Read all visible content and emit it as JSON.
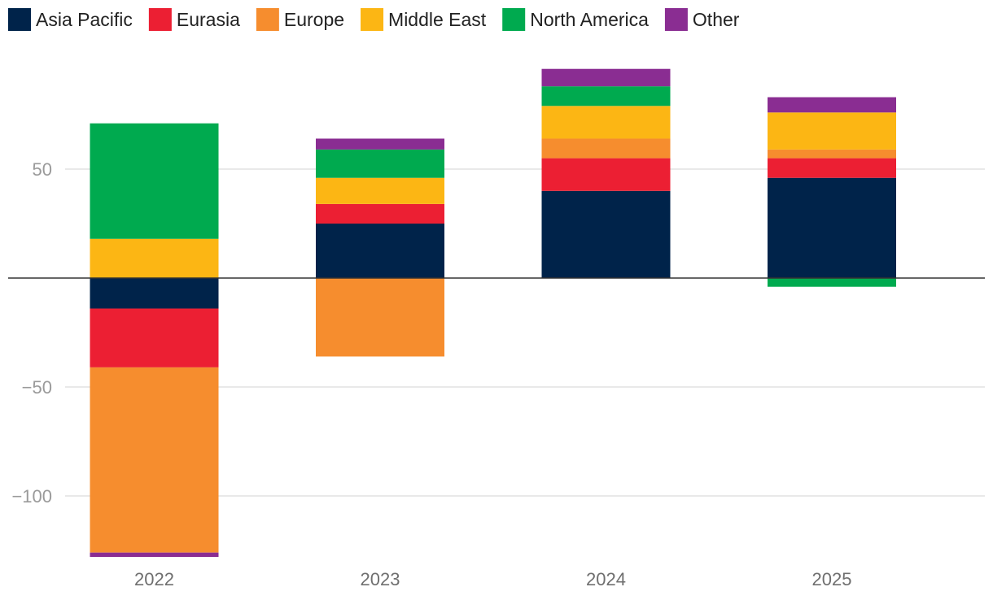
{
  "chart_data": {
    "type": "bar",
    "stacked": true,
    "title": "",
    "xlabel": "",
    "ylabel": "",
    "ylim": [
      -128,
      96
    ],
    "y_ticks": [
      50,
      -50,
      -100
    ],
    "y_tick_labels": [
      "50",
      "−50",
      "−100"
    ],
    "legend_position": "top-left",
    "categories": [
      "2022",
      "2023",
      "2024",
      "2025"
    ],
    "series": [
      {
        "name": "Asia Pacific",
        "color": "#00234a",
        "values": [
          -14,
          25,
          40,
          46
        ]
      },
      {
        "name": "Eurasia",
        "color": "#ec1f33",
        "values": [
          -27,
          9,
          15,
          9
        ]
      },
      {
        "name": "Europe",
        "color": "#f68d2e",
        "values": [
          -85,
          -36,
          9,
          4
        ]
      },
      {
        "name": "Middle East",
        "color": "#fcb614",
        "values": [
          18,
          12,
          15,
          17
        ]
      },
      {
        "name": "North America",
        "color": "#00aa4f",
        "values": [
          53,
          13,
          9,
          -4
        ]
      },
      {
        "name": "Other",
        "color": "#8a2d92",
        "values": [
          -2,
          5,
          8,
          7
        ]
      }
    ]
  }
}
